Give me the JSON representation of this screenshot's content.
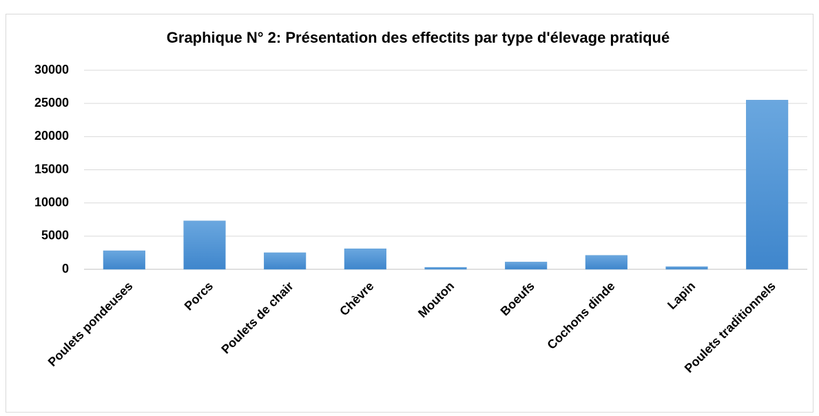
{
  "chart_data": {
    "type": "bar",
    "title": "Graphique N° 2: Présentation des effectits par type d'élevage pratiqué",
    "categories": [
      "Poulets pondeuses",
      "Porcs",
      "Poulets de chair",
      "Chèvre",
      "Mouton",
      "Boeufs",
      "Cochons dinde",
      "Lapin",
      "Poulets traditionnels"
    ],
    "values": [
      2800,
      7300,
      2500,
      3100,
      300,
      1100,
      2100,
      400,
      25500
    ],
    "color": "#5b9bd5",
    "ylim": [
      0,
      30000
    ],
    "yticks": [
      0,
      5000,
      10000,
      15000,
      20000,
      25000,
      30000
    ],
    "grid": true
  }
}
